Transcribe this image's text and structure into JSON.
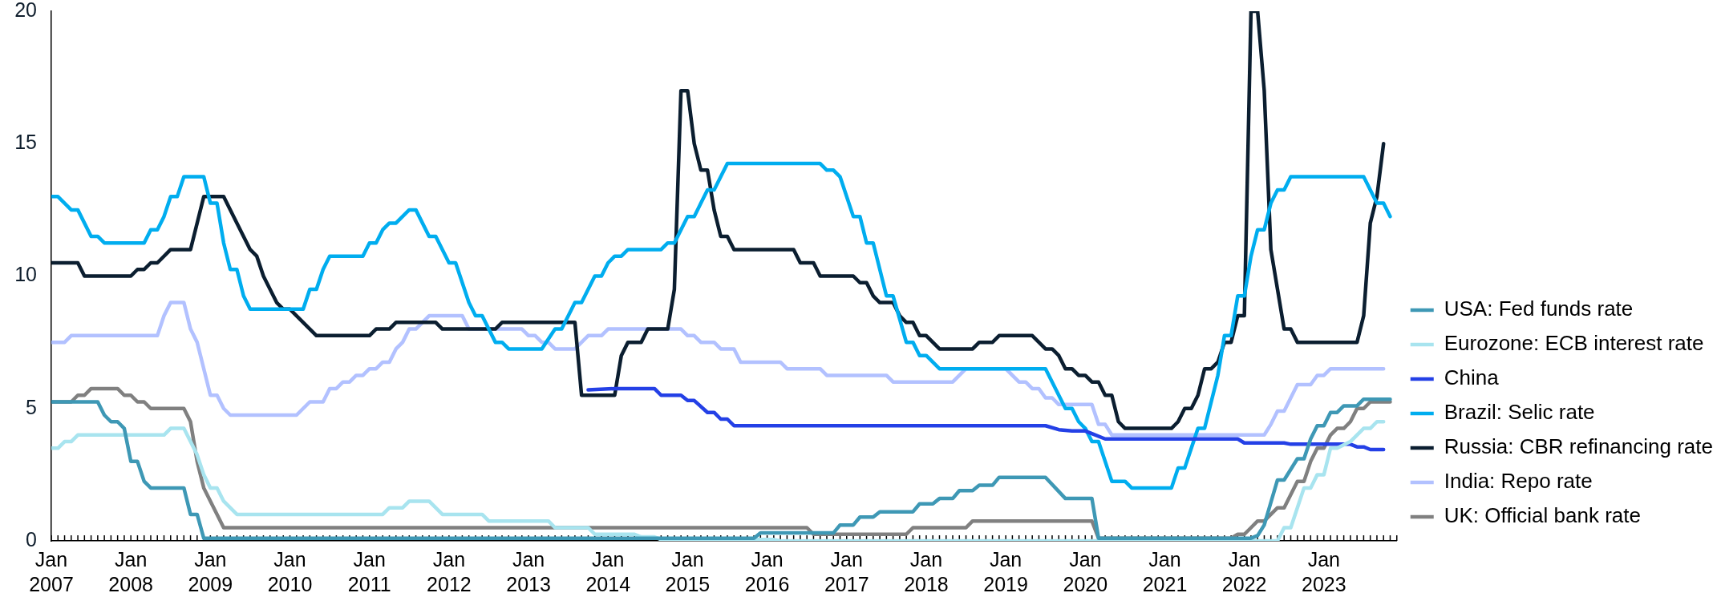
{
  "chart_data": {
    "type": "line",
    "xlim": [
      "2007-01",
      "2023-12"
    ],
    "xticks": [
      {
        "value": "2007-01",
        "label": "Jan 2007"
      },
      {
        "value": "2007-02",
        "label": null
      },
      {
        "value": "2007-03",
        "label": null
      },
      {
        "value": "2007-04",
        "label": null
      },
      {
        "value": "2007-05",
        "label": null
      },
      {
        "value": "2007-06",
        "label": null
      },
      {
        "value": "2007-07",
        "label": null
      },
      {
        "value": "2007-08",
        "label": null
      },
      {
        "value": "2007-09",
        "label": null
      },
      {
        "value": "2007-10",
        "label": null
      },
      {
        "value": "2007-11",
        "label": null
      },
      {
        "value": "2007-12",
        "label": null
      },
      {
        "value": "2008-01",
        "label": "Jan 2008"
      },
      {
        "value": "2008-02",
        "label": null
      },
      {
        "value": "2008-03",
        "label": null
      },
      {
        "value": "2008-04",
        "label": null
      },
      {
        "value": "2008-05",
        "label": null
      },
      {
        "value": "2008-06",
        "label": null
      },
      {
        "value": "2008-07",
        "label": null
      },
      {
        "value": "2008-08",
        "label": null
      },
      {
        "value": "2008-09",
        "label": null
      },
      {
        "value": "2008-10",
        "label": null
      },
      {
        "value": "2008-11",
        "label": null
      },
      {
        "value": "2008-12",
        "label": null
      },
      {
        "value": "2009-01",
        "label": "Jan 2009"
      },
      {
        "value": "2009-02",
        "label": null
      },
      {
        "value": "2009-03",
        "label": null
      },
      {
        "value": "2009-04",
        "label": null
      },
      {
        "value": "2009-05",
        "label": null
      },
      {
        "value": "2009-06",
        "label": null
      },
      {
        "value": "2009-07",
        "label": null
      },
      {
        "value": "2009-08",
        "label": null
      },
      {
        "value": "2009-09",
        "label": null
      },
      {
        "value": "2009-10",
        "label": null
      },
      {
        "value": "2009-11",
        "label": null
      },
      {
        "value": "2009-12",
        "label": null
      },
      {
        "value": "2010-01",
        "label": "Jan 2010"
      },
      {
        "value": "2010-02",
        "label": null
      },
      {
        "value": "2010-03",
        "label": null
      },
      {
        "value": "2010-04",
        "label": null
      },
      {
        "value": "2010-05",
        "label": null
      },
      {
        "value": "2010-06",
        "label": null
      },
      {
        "value": "2010-07",
        "label": null
      },
      {
        "value": "2010-08",
        "label": null
      },
      {
        "value": "2010-09",
        "label": null
      },
      {
        "value": "2010-10",
        "label": null
      },
      {
        "value": "2010-11",
        "label": null
      },
      {
        "value": "2010-12",
        "label": null
      },
      {
        "value": "2011-01",
        "label": "Jan 2011"
      },
      {
        "value": "2011-02",
        "label": null
      },
      {
        "value": "2011-03",
        "label": null
      },
      {
        "value": "2011-04",
        "label": null
      },
      {
        "value": "2011-05",
        "label": null
      },
      {
        "value": "2011-06",
        "label": null
      },
      {
        "value": "2011-07",
        "label": null
      },
      {
        "value": "2011-08",
        "label": null
      },
      {
        "value": "2011-09",
        "label": null
      },
      {
        "value": "2011-10",
        "label": null
      },
      {
        "value": "2011-11",
        "label": null
      },
      {
        "value": "2011-12",
        "label": null
      },
      {
        "value": "2012-01",
        "label": "Jan 2012"
      },
      {
        "value": "2012-02",
        "label": null
      },
      {
        "value": "2012-03",
        "label": null
      },
      {
        "value": "2012-04",
        "label": null
      },
      {
        "value": "2012-05",
        "label": null
      },
      {
        "value": "2012-06",
        "label": null
      },
      {
        "value": "2012-07",
        "label": null
      },
      {
        "value": "2012-08",
        "label": null
      },
      {
        "value": "2012-09",
        "label": null
      },
      {
        "value": "2012-10",
        "label": null
      },
      {
        "value": "2012-11",
        "label": null
      },
      {
        "value": "2012-12",
        "label": null
      },
      {
        "value": "2013-01",
        "label": "Jan 2013"
      },
      {
        "value": "2013-02",
        "label": null
      },
      {
        "value": "2013-03",
        "label": null
      },
      {
        "value": "2013-04",
        "label": null
      },
      {
        "value": "2013-05",
        "label": null
      },
      {
        "value": "2013-06",
        "label": null
      },
      {
        "value": "2013-07",
        "label": null
      },
      {
        "value": "2013-08",
        "label": null
      },
      {
        "value": "2013-09",
        "label": null
      },
      {
        "value": "2013-10",
        "label": null
      },
      {
        "value": "2013-11",
        "label": null
      },
      {
        "value": "2013-12",
        "label": null
      },
      {
        "value": "2014-01",
        "label": "Jan 2014"
      },
      {
        "value": "2014-02",
        "label": null
      },
      {
        "value": "2014-03",
        "label": null
      },
      {
        "value": "2014-04",
        "label": null
      },
      {
        "value": "2014-05",
        "label": null
      },
      {
        "value": "2014-06",
        "label": null
      },
      {
        "value": "2014-07",
        "label": null
      },
      {
        "value": "2014-08",
        "label": null
      },
      {
        "value": "2014-09",
        "label": null
      },
      {
        "value": "2014-10",
        "label": null
      },
      {
        "value": "2014-11",
        "label": null
      },
      {
        "value": "2014-12",
        "label": null
      },
      {
        "value": "2015-01",
        "label": "Jan 2015"
      },
      {
        "value": "2015-02",
        "label": null
      },
      {
        "value": "2015-03",
        "label": null
      },
      {
        "value": "2015-04",
        "label": null
      },
      {
        "value": "2015-05",
        "label": null
      },
      {
        "value": "2015-06",
        "label": null
      },
      {
        "value": "2015-07",
        "label": null
      },
      {
        "value": "2015-08",
        "label": null
      },
      {
        "value": "2015-09",
        "label": null
      },
      {
        "value": "2015-10",
        "label": null
      },
      {
        "value": "2015-11",
        "label": null
      },
      {
        "value": "2015-12",
        "label": null
      },
      {
        "value": "2016-01",
        "label": "Jan 2016"
      },
      {
        "value": "2016-02",
        "label": null
      },
      {
        "value": "2016-03",
        "label": null
      },
      {
        "value": "2016-04",
        "label": null
      },
      {
        "value": "2016-05",
        "label": null
      },
      {
        "value": "2016-06",
        "label": null
      },
      {
        "value": "2016-07",
        "label": null
      },
      {
        "value": "2016-08",
        "label": null
      },
      {
        "value": "2016-09",
        "label": null
      },
      {
        "value": "2016-10",
        "label": null
      },
      {
        "value": "2016-11",
        "label": null
      },
      {
        "value": "2016-12",
        "label": null
      },
      {
        "value": "2017-01",
        "label": "Jan 2017"
      },
      {
        "value": "2017-02",
        "label": null
      },
      {
        "value": "2017-03",
        "label": null
      },
      {
        "value": "2017-04",
        "label": null
      },
      {
        "value": "2017-05",
        "label": null
      },
      {
        "value": "2017-06",
        "label": null
      },
      {
        "value": "2017-07",
        "label": null
      },
      {
        "value": "2017-08",
        "label": null
      },
      {
        "value": "2017-09",
        "label": null
      },
      {
        "value": "2017-10",
        "label": null
      },
      {
        "value": "2017-11",
        "label": null
      },
      {
        "value": "2017-12",
        "label": null
      },
      {
        "value": "2018-01",
        "label": "Jan 2018"
      },
      {
        "value": "2018-02",
        "label": null
      },
      {
        "value": "2018-03",
        "label": null
      },
      {
        "value": "2018-04",
        "label": null
      },
      {
        "value": "2018-05",
        "label": null
      },
      {
        "value": "2018-06",
        "label": null
      },
      {
        "value": "2018-07",
        "label": null
      },
      {
        "value": "2018-08",
        "label": null
      },
      {
        "value": "2018-09",
        "label": null
      },
      {
        "value": "2018-10",
        "label": null
      },
      {
        "value": "2018-11",
        "label": null
      },
      {
        "value": "2018-12",
        "label": null
      },
      {
        "value": "2019-01",
        "label": "Jan 2019"
      },
      {
        "value": "2019-02",
        "label": null
      },
      {
        "value": "2019-03",
        "label": null
      },
      {
        "value": "2019-04",
        "label": null
      },
      {
        "value": "2019-05",
        "label": null
      },
      {
        "value": "2019-06",
        "label": null
      },
      {
        "value": "2019-07",
        "label": null
      },
      {
        "value": "2019-08",
        "label": null
      },
      {
        "value": "2019-09",
        "label": null
      },
      {
        "value": "2019-10",
        "label": null
      },
      {
        "value": "2019-11",
        "label": null
      },
      {
        "value": "2019-12",
        "label": null
      },
      {
        "value": "2020-01",
        "label": "Jan 2020"
      },
      {
        "value": "2020-02",
        "label": null
      },
      {
        "value": "2020-03",
        "label": null
      },
      {
        "value": "2020-04",
        "label": null
      },
      {
        "value": "2020-05",
        "label": null
      },
      {
        "value": "2020-06",
        "label": null
      },
      {
        "value": "2020-07",
        "label": null
      },
      {
        "value": "2020-08",
        "label": null
      },
      {
        "value": "2020-09",
        "label": null
      },
      {
        "value": "2020-10",
        "label": null
      },
      {
        "value": "2020-11",
        "label": null
      },
      {
        "value": "2020-12",
        "label": null
      },
      {
        "value": "2021-01",
        "label": "Jan 2021"
      },
      {
        "value": "2021-02",
        "label": null
      },
      {
        "value": "2021-03",
        "label": null
      },
      {
        "value": "2021-04",
        "label": null
      },
      {
        "value": "2021-05",
        "label": null
      },
      {
        "value": "2021-06",
        "label": null
      },
      {
        "value": "2021-07",
        "label": null
      },
      {
        "value": "2021-08",
        "label": null
      },
      {
        "value": "2021-09",
        "label": null
      },
      {
        "value": "2021-10",
        "label": null
      },
      {
        "value": "2021-11",
        "label": null
      },
      {
        "value": "2021-12",
        "label": null
      },
      {
        "value": "2022-01",
        "label": "Jan 2022"
      },
      {
        "value": "2022-02",
        "label": null
      },
      {
        "value": "2022-03",
        "label": null
      },
      {
        "value": "2022-04",
        "label": null
      },
      {
        "value": "2022-05",
        "label": null
      },
      {
        "value": "2022-06",
        "label": null
      },
      {
        "value": "2022-07",
        "label": null
      },
      {
        "value": "2022-08",
        "label": null
      },
      {
        "value": "2022-09",
        "label": null
      },
      {
        "value": "2022-10",
        "label": null
      },
      {
        "value": "2022-11",
        "label": null
      },
      {
        "value": "2022-12",
        "label": null
      },
      {
        "value": "2023-01",
        "label": "Jan 2023"
      },
      {
        "value": "2023-02",
        "label": null
      },
      {
        "value": "2023-03",
        "label": null
      },
      {
        "value": "2023-04",
        "label": null
      },
      {
        "value": "2023-05",
        "label": null
      },
      {
        "value": "2023-06",
        "label": null
      },
      {
        "value": "2023-07",
        "label": null
      },
      {
        "value": "2023-08",
        "label": null
      },
      {
        "value": "2023-09",
        "label": null
      },
      {
        "value": "2023-10",
        "label": null
      },
      {
        "value": "2023-11",
        "label": null
      },
      {
        "value": "2023-12",
        "label": null
      }
    ],
    "ylim": [
      0,
      20
    ],
    "yticks": [
      0,
      5,
      10,
      15,
      20
    ],
    "legend": "bottom right",
    "series": [
      {
        "name": "USA: Fed funds rate",
        "color": "#3e98b5",
        "x": [
          "2007-01",
          "2007-08",
          "2007-09",
          "2007-10",
          "2007-11",
          "2007-12",
          "2008-01",
          "2008-02",
          "2008-03",
          "2008-04",
          "2008-09",
          "2008-10",
          "2008-11",
          "2008-12",
          "2015-11",
          "2015-12",
          "2016-11",
          "2016-12",
          "2017-02",
          "2017-03",
          "2017-05",
          "2017-06",
          "2017-11",
          "2017-12",
          "2018-02",
          "2018-03",
          "2018-05",
          "2018-06",
          "2018-08",
          "2018-09",
          "2018-11",
          "2018-12",
          "2019-07",
          "2019-10",
          "2020-02",
          "2020-03",
          "2022-02",
          "2022-03",
          "2022-04",
          "2022-06",
          "2022-07",
          "2022-09",
          "2022-10",
          "2022-11",
          "2022-12",
          "2023-01",
          "2023-02",
          "2023-03",
          "2023-04",
          "2023-06",
          "2023-07",
          "2023-11"
        ],
        "values": [
          5.25,
          5.25,
          4.75,
          4.5,
          4.5,
          4.25,
          3.0,
          3.0,
          2.25,
          2.0,
          2.0,
          1.0,
          1.0,
          0.1,
          0.1,
          0.3,
          0.3,
          0.6,
          0.6,
          0.9,
          0.9,
          1.1,
          1.1,
          1.4,
          1.4,
          1.6,
          1.6,
          1.9,
          1.9,
          2.1,
          2.1,
          2.4,
          2.4,
          1.6,
          1.6,
          0.1,
          0.1,
          0.2,
          0.6,
          2.3,
          2.3,
          3.1,
          3.1,
          3.85,
          4.35,
          4.35,
          4.85,
          4.85,
          5.1,
          5.1,
          5.35,
          5.35
        ]
      },
      {
        "name": "Eurozone: ECB interest rate",
        "color": "#a8e4ef",
        "x": [
          "2007-01",
          "2007-02",
          "2007-03",
          "2007-04",
          "2007-05",
          "2008-06",
          "2008-07",
          "2008-09",
          "2008-10",
          "2008-11",
          "2008-12",
          "2009-01",
          "2009-02",
          "2009-03",
          "2009-04",
          "2009-05",
          "2011-03",
          "2011-04",
          "2011-06",
          "2011-07",
          "2011-10",
          "2011-11",
          "2011-12",
          "2012-06",
          "2012-07",
          "2013-04",
          "2013-05",
          "2013-10",
          "2013-11",
          "2014-05",
          "2014-06",
          "2014-08",
          "2014-09",
          "2016-02",
          "2016-03",
          "2022-06",
          "2022-07",
          "2022-08",
          "2022-10",
          "2022-11",
          "2022-12",
          "2023-01",
          "2023-02",
          "2023-03",
          "2023-05",
          "2023-07",
          "2023-08",
          "2023-09",
          "2023-10"
        ],
        "values": [
          3.5,
          3.5,
          3.75,
          3.75,
          4.0,
          4.0,
          4.25,
          4.25,
          3.75,
          3.25,
          2.5,
          2.0,
          2.0,
          1.5,
          1.25,
          1.0,
          1.0,
          1.25,
          1.25,
          1.5,
          1.5,
          1.25,
          1.0,
          1.0,
          0.75,
          0.75,
          0.5,
          0.5,
          0.25,
          0.25,
          0.15,
          0.15,
          0.05,
          0.05,
          0.0,
          0.0,
          0.5,
          0.5,
          2.0,
          2.0,
          2.5,
          2.5,
          3.5,
          3.5,
          3.75,
          4.25,
          4.25,
          4.5,
          4.5
        ]
      },
      {
        "name": "China",
        "color": "#2440e6",
        "x": [
          "2013-10",
          "2014-02",
          "2014-08",
          "2014-09",
          "2014-12",
          "2015-01",
          "2015-02",
          "2015-04",
          "2015-05",
          "2015-06",
          "2015-07",
          "2015-08",
          "2019-07",
          "2019-09",
          "2019-11",
          "2020-01",
          "2020-02",
          "2020-04",
          "2021-12",
          "2022-01",
          "2022-07",
          "2022-08",
          "2023-05",
          "2023-06",
          "2023-07",
          "2023-08",
          "2023-10"
        ],
        "values": [
          5.7,
          5.75,
          5.75,
          5.5,
          5.5,
          5.3,
          5.3,
          4.85,
          4.85,
          4.6,
          4.6,
          4.35,
          4.35,
          4.2,
          4.15,
          4.15,
          4.05,
          3.85,
          3.85,
          3.7,
          3.7,
          3.65,
          3.65,
          3.55,
          3.55,
          3.45,
          3.45
        ]
      },
      {
        "name": "Brazil: Selic rate",
        "color": "#00adef",
        "x": [
          "2007-01",
          "2007-02",
          "2007-04",
          "2007-05",
          "2007-07",
          "2007-08",
          "2007-09",
          "2008-03",
          "2008-04",
          "2008-05",
          "2008-06",
          "2008-07",
          "2008-08",
          "2008-09",
          "2008-12",
          "2009-01",
          "2009-02",
          "2009-03",
          "2009-04",
          "2009-05",
          "2009-06",
          "2009-07",
          "2010-03",
          "2010-04",
          "2010-05",
          "2010-06",
          "2010-07",
          "2010-12",
          "2011-01",
          "2011-02",
          "2011-03",
          "2011-04",
          "2011-05",
          "2011-07",
          "2011-08",
          "2011-10",
          "2011-11",
          "2012-01",
          "2012-02",
          "2012-04",
          "2012-05",
          "2012-06",
          "2012-08",
          "2012-09",
          "2012-10",
          "2013-03",
          "2013-05",
          "2013-06",
          "2013-08",
          "2013-09",
          "2013-11",
          "2013-12",
          "2014-01",
          "2014-02",
          "2014-03",
          "2014-04",
          "2014-09",
          "2014-10",
          "2014-11",
          "2015-01",
          "2015-02",
          "2015-03",
          "2015-04",
          "2015-05",
          "2015-06",
          "2015-07",
          "2016-09",
          "2016-10",
          "2016-11",
          "2016-12",
          "2017-02",
          "2017-03",
          "2017-04",
          "2017-05",
          "2017-07",
          "2017-08",
          "2017-10",
          "2017-11",
          "2017-12",
          "2018-01",
          "2018-03",
          "2019-07",
          "2019-08",
          "2019-09",
          "2019-10",
          "2019-11",
          "2019-12",
          "2020-01",
          "2020-02",
          "2020-03",
          "2020-05",
          "2020-07",
          "2020-08",
          "2021-02",
          "2021-03",
          "2021-04",
          "2021-05",
          "2021-06",
          "2021-07",
          "2021-08",
          "2021-09",
          "2021-10",
          "2021-11",
          "2021-12",
          "2022-01",
          "2022-02",
          "2022-03",
          "2022-04",
          "2022-05",
          "2022-06",
          "2022-07",
          "2022-08",
          "2023-07",
          "2023-08",
          "2023-09",
          "2023-10",
          "2023-11"
        ],
        "values": [
          13.0,
          13.0,
          12.5,
          12.5,
          11.5,
          11.5,
          11.25,
          11.25,
          11.75,
          11.75,
          12.25,
          13.0,
          13.0,
          13.75,
          13.75,
          12.75,
          12.75,
          11.25,
          10.25,
          10.25,
          9.25,
          8.75,
          8.75,
          9.5,
          9.5,
          10.25,
          10.75,
          10.75,
          11.25,
          11.25,
          11.75,
          12.0,
          12.0,
          12.5,
          12.5,
          11.5,
          11.5,
          10.5,
          10.5,
          9.0,
          8.5,
          8.5,
          7.5,
          7.5,
          7.25,
          7.25,
          8.0,
          8.0,
          9.0,
          9.0,
          10.0,
          10.0,
          10.5,
          10.75,
          10.75,
          11.0,
          11.0,
          11.25,
          11.25,
          12.25,
          12.25,
          12.75,
          13.25,
          13.25,
          13.75,
          14.25,
          14.25,
          14.0,
          14.0,
          13.75,
          12.25,
          12.25,
          11.25,
          11.25,
          9.25,
          9.25,
          7.5,
          7.5,
          7.0,
          7.0,
          6.5,
          6.5,
          6.0,
          5.5,
          5.0,
          5.0,
          4.5,
          4.25,
          3.75,
          3.75,
          2.25,
          2.25,
          2.0,
          2.0,
          2.75,
          2.75,
          3.5,
          4.25,
          4.25,
          5.25,
          6.25,
          7.75,
          7.75,
          9.25,
          9.25,
          10.75,
          11.75,
          11.75,
          12.75,
          13.25,
          13.25,
          13.75,
          13.75,
          13.25,
          12.75,
          12.75,
          12.25
        ]
      },
      {
        "name": "Russia: CBR refinancing rate",
        "color": "#0b1e30",
        "x": [
          "2007-01",
          "2007-05",
          "2007-06",
          "2008-01",
          "2008-02",
          "2008-03",
          "2008-04",
          "2008-05",
          "2008-07",
          "2008-10",
          "2008-12",
          "2009-03",
          "2009-05",
          "2009-07",
          "2009-08",
          "2009-09",
          "2009-11",
          "2009-12",
          "2010-01",
          "2010-05",
          "2011-01",
          "2011-02",
          "2011-04",
          "2011-05",
          "2011-11",
          "2011-12",
          "2012-08",
          "2012-09",
          "2013-08",
          "2013-09",
          "2014-02",
          "2014-03",
          "2014-04",
          "2014-06",
          "2014-07",
          "2014-10",
          "2014-11",
          "2014-12",
          "2015-01",
          "2015-02",
          "2015-03",
          "2015-04",
          "2015-05",
          "2015-06",
          "2015-07",
          "2015-08",
          "2016-05",
          "2016-06",
          "2016-08",
          "2016-09",
          "2017-02",
          "2017-03",
          "2017-04",
          "2017-05",
          "2017-06",
          "2017-08",
          "2017-09",
          "2017-10",
          "2017-11",
          "2017-12",
          "2018-01",
          "2018-03",
          "2018-08",
          "2018-09",
          "2018-11",
          "2018-12",
          "2019-05",
          "2019-07",
          "2019-08",
          "2019-09",
          "2019-10",
          "2019-11",
          "2019-12",
          "2020-01",
          "2020-02",
          "2020-03",
          "2020-04",
          "2020-05",
          "2020-06",
          "2020-07",
          "2021-02",
          "2021-03",
          "2021-04",
          "2021-05",
          "2021-06",
          "2021-07",
          "2021-08",
          "2021-09",
          "2021-10",
          "2021-11",
          "2021-12",
          "2022-01",
          "2022-02",
          "2022-03",
          "2022-04",
          "2022-05",
          "2022-07",
          "2022-08",
          "2022-09",
          "2023-06",
          "2023-07",
          "2023-08",
          "2023-09",
          "2023-10"
        ],
        "values": [
          10.5,
          10.5,
          10.0,
          10.0,
          10.25,
          10.25,
          10.5,
          10.5,
          11.0,
          11.0,
          13.0,
          13.0,
          12.0,
          11.0,
          10.75,
          10.0,
          9.0,
          8.75,
          8.75,
          7.75,
          7.75,
          8.0,
          8.0,
          8.25,
          8.25,
          8.0,
          8.0,
          8.25,
          8.25,
          5.5,
          5.5,
          7.0,
          7.5,
          7.5,
          8.0,
          8.0,
          9.5,
          17.0,
          17.0,
          15.0,
          14.0,
          14.0,
          12.5,
          11.5,
          11.5,
          11.0,
          11.0,
          10.5,
          10.5,
          10.0,
          10.0,
          9.75,
          9.75,
          9.25,
          9.0,
          9.0,
          8.5,
          8.25,
          8.25,
          7.75,
          7.75,
          7.25,
          7.25,
          7.5,
          7.5,
          7.75,
          7.75,
          7.25,
          7.25,
          7.0,
          6.5,
          6.5,
          6.25,
          6.25,
          6.0,
          6.0,
          5.5,
          5.5,
          4.5,
          4.25,
          4.25,
          4.5,
          5.0,
          5.0,
          5.5,
          6.5,
          6.5,
          6.75,
          7.5,
          7.5,
          8.5,
          8.5,
          20.0,
          20.0,
          17.0,
          11.0,
          8.0,
          8.0,
          7.5,
          7.5,
          8.5,
          12.0,
          13.0,
          15.0
        ]
      },
      {
        "name": "India: Repo rate",
        "color": "#b2c1ff",
        "x": [
          "2007-01",
          "2007-03",
          "2007-04",
          "2008-05",
          "2008-06",
          "2008-07",
          "2008-09",
          "2008-10",
          "2008-11",
          "2009-01",
          "2009-02",
          "2009-03",
          "2009-04",
          "2010-02",
          "2010-03",
          "2010-04",
          "2010-06",
          "2010-07",
          "2010-08",
          "2010-09",
          "2010-10",
          "2010-11",
          "2010-12",
          "2011-01",
          "2011-02",
          "2011-03",
          "2011-04",
          "2011-05",
          "2011-06",
          "2011-07",
          "2011-08",
          "2011-09",
          "2011-10",
          "2012-03",
          "2012-04",
          "2012-12",
          "2013-01",
          "2013-02",
          "2013-03",
          "2013-04",
          "2013-05",
          "2013-08",
          "2013-09",
          "2013-10",
          "2013-12",
          "2014-01",
          "2014-12",
          "2015-01",
          "2015-02",
          "2015-03",
          "2015-05",
          "2015-06",
          "2015-08",
          "2015-09",
          "2016-03",
          "2016-04",
          "2016-09",
          "2016-10",
          "2017-07",
          "2017-08",
          "2018-05",
          "2018-06",
          "2018-07",
          "2019-01",
          "2019-02",
          "2019-03",
          "2019-04",
          "2019-05",
          "2019-06",
          "2019-07",
          "2019-08",
          "2019-09",
          "2020-02",
          "2020-03",
          "2020-04",
          "2020-05",
          "2022-04",
          "2022-05",
          "2022-06",
          "2022-07",
          "2022-08",
          "2022-09",
          "2022-11",
          "2022-12",
          "2023-01",
          "2023-02",
          "2023-10"
        ],
        "values": [
          7.5,
          7.5,
          7.75,
          7.75,
          8.5,
          9.0,
          9.0,
          8.0,
          7.5,
          5.5,
          5.5,
          5.0,
          4.75,
          4.75,
          5.0,
          5.25,
          5.25,
          5.75,
          5.75,
          6.0,
          6.0,
          6.25,
          6.25,
          6.5,
          6.5,
          6.75,
          6.75,
          7.25,
          7.5,
          8.0,
          8.0,
          8.25,
          8.5,
          8.5,
          8.0,
          8.0,
          7.75,
          7.75,
          7.5,
          7.5,
          7.25,
          7.25,
          7.5,
          7.75,
          7.75,
          8.0,
          8.0,
          7.75,
          7.75,
          7.5,
          7.5,
          7.25,
          7.25,
          6.75,
          6.75,
          6.5,
          6.5,
          6.25,
          6.25,
          6.0,
          6.0,
          6.25,
          6.5,
          6.5,
          6.25,
          6.0,
          6.0,
          5.75,
          5.75,
          5.4,
          5.4,
          5.15,
          5.15,
          4.4,
          4.4,
          4.0,
          4.0,
          4.4,
          4.9,
          4.9,
          5.4,
          5.9,
          5.9,
          6.25,
          6.25,
          6.5,
          6.5
        ]
      },
      {
        "name": "UK: Official bank rate",
        "color": "#808080",
        "x": [
          "2007-01",
          "2007-04",
          "2007-05",
          "2007-06",
          "2007-07",
          "2007-11",
          "2007-12",
          "2008-01",
          "2008-02",
          "2008-03",
          "2008-04",
          "2008-09",
          "2008-10",
          "2008-11",
          "2008-12",
          "2009-01",
          "2009-02",
          "2009-03",
          "2016-07",
          "2016-08",
          "2017-10",
          "2017-11",
          "2018-07",
          "2018-08",
          "2020-02",
          "2020-03",
          "2021-11",
          "2021-12",
          "2022-01",
          "2022-02",
          "2022-03",
          "2022-04",
          "2022-05",
          "2022-06",
          "2022-07",
          "2022-08",
          "2022-09",
          "2022-10",
          "2022-11",
          "2022-12",
          "2023-01",
          "2023-02",
          "2023-03",
          "2023-04",
          "2023-05",
          "2023-06",
          "2023-07",
          "2023-08",
          "2023-11"
        ],
        "values": [
          5.25,
          5.25,
          5.5,
          5.5,
          5.75,
          5.75,
          5.5,
          5.5,
          5.25,
          5.25,
          5.0,
          5.0,
          4.5,
          3.0,
          2.0,
          1.5,
          1.0,
          0.5,
          0.5,
          0.25,
          0.25,
          0.5,
          0.5,
          0.75,
          0.75,
          0.1,
          0.1,
          0.25,
          0.25,
          0.5,
          0.75,
          0.75,
          1.0,
          1.25,
          1.25,
          1.75,
          2.25,
          2.25,
          3.0,
          3.5,
          3.5,
          4.0,
          4.25,
          4.25,
          4.5,
          5.0,
          5.0,
          5.25,
          5.25
        ]
      }
    ]
  }
}
